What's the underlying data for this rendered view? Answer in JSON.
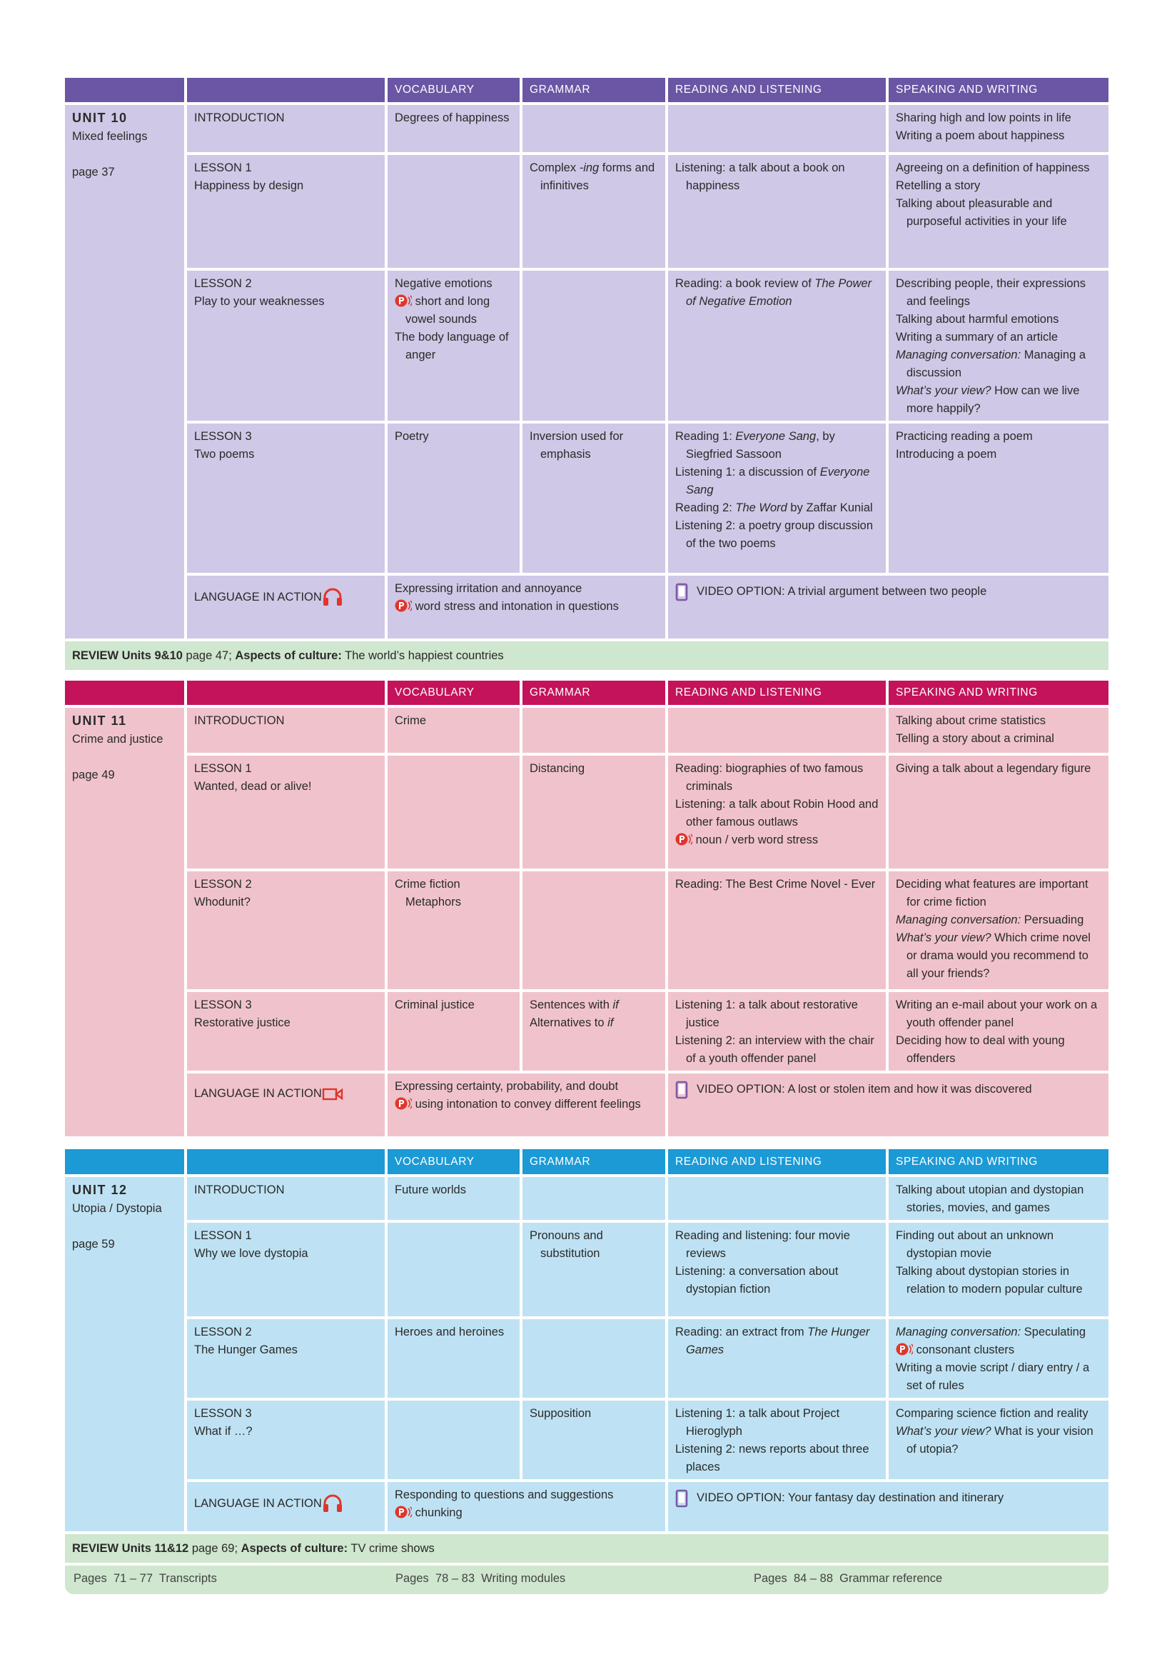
{
  "headers": [
    "VOCABULARY",
    "GRAMMAR",
    "READING AND LISTENING",
    "SPEAKING AND WRITING"
  ],
  "review_color": "#cfe6cf",
  "units": [
    {
      "unit": "UNIT 10",
      "title": "Mixed feelings",
      "page": "page 37",
      "header_color": "#6a56a4",
      "body_color": "#cfc8e6",
      "rows": [
        {
          "lesson": [
            "INTRODUCTION"
          ],
          "cells": [
            [
              "Degrees of happiness"
            ],
            [],
            [],
            [
              "Sharing high and low points in life",
              "Writing a poem about happiness"
            ]
          ]
        },
        {
          "lesson": [
            "LESSON 1",
            "Happiness by design"
          ],
          "cells": [
            [],
            [
              [
                "Complex ",
                {
                  "italic": "-ing"
                },
                " forms and infinitives"
              ]
            ],
            [
              "Listening: a talk about a book on happiness"
            ],
            [
              "Agreeing on a definition of happiness",
              "Retelling a story",
              "Talking about pleasurable and purposeful activities in your life"
            ]
          ]
        },
        {
          "lesson": [
            "LESSON 2",
            "Play to your weaknesses"
          ],
          "cells": [
            [
              "Negative emotions",
              [
                {
                  "icon": "pron"
                },
                "short and long vowel sounds"
              ],
              "The body language of anger"
            ],
            [],
            [
              [
                "Reading: a book review of ",
                {
                  "italic": "The Power of Negative Emotion"
                }
              ]
            ],
            [
              "Describing people, their expressions and feelings",
              "Talking about harmful emotions",
              "Writing a summary of an article",
              [
                {
                  "italic": "Managing conversation:"
                },
                " Managing a discussion"
              ],
              [
                {
                  "italic": "What’s your view?"
                },
                " How can we live more happily?"
              ]
            ]
          ]
        },
        {
          "lesson": [
            "LESSON 3",
            "Two poems"
          ],
          "cells": [
            [
              "Poetry"
            ],
            [
              "Inversion used for emphasis"
            ],
            [
              [
                "Reading 1: ",
                {
                  "italic": "Everyone Sang"
                },
                ", by Siegfried Sassoon"
              ],
              [
                "Listening 1: a discussion of ",
                {
                  "italic": "Everyone Sang"
                }
              ],
              [
                "Reading 2: ",
                {
                  "italic": "The Word"
                },
                " by Zaffar Kunial"
              ],
              "Listening 2: a poetry group discussion of the two poems"
            ],
            [
              "Practicing reading a poem",
              "Introducing a poem"
            ]
          ]
        }
      ],
      "language_in_action": {
        "label": "LANGUAGE IN ACTION",
        "icon": "headphones",
        "vocabulary": [
          "Expressing irritation and annoyance",
          [
            {
              "icon": "pron"
            },
            "word stress and intonation in questions"
          ]
        ],
        "video": "VIDEO OPTION: A trivial argument between two people"
      },
      "review": [
        {
          "bold": "REVIEW Units 9&10"
        },
        " page 47; ",
        {
          "bold": "Aspects of culture:"
        },
        " The world’s happiest countries"
      ]
    },
    {
      "unit": "UNIT 11",
      "title": "Crime and justice",
      "page": "page 49",
      "header_color": "#c4135a",
      "body_color": "#f0c3cc",
      "rows": [
        {
          "lesson": [
            "INTRODUCTION"
          ],
          "cells": [
            [
              "Crime"
            ],
            [],
            [],
            [
              "Talking about crime statistics",
              "Telling a story about a criminal"
            ]
          ]
        },
        {
          "lesson": [
            "LESSON 1",
            "Wanted, dead or alive!"
          ],
          "cells": [
            [],
            [
              "Distancing"
            ],
            [
              "Reading: biographies of two famous criminals",
              "Listening: a talk about Robin Hood and other famous outlaws",
              [
                {
                  "icon": "pron"
                },
                "noun / verb word stress"
              ]
            ],
            [
              "Giving a talk about a legendary figure"
            ]
          ]
        },
        {
          "lesson": [
            "LESSON 2",
            "Whodunit?"
          ],
          "cells": [
            [
              "Crime fiction Metaphors"
            ],
            [],
            [
              "Reading: The Best Crime Novel - Ever"
            ],
            [
              "Deciding what features are important for crime fiction",
              [
                {
                  "italic": "Managing conversation:"
                },
                " Persuading"
              ],
              [
                {
                  "italic": "What’s your view?"
                },
                " Which crime novel or drama would you recommend to all your friends?"
              ]
            ]
          ]
        },
        {
          "lesson": [
            "LESSON 3",
            "Restorative justice"
          ],
          "cells": [
            [
              "Criminal justice"
            ],
            [
              [
                "Sentences with ",
                {
                  "italic": "if"
                }
              ],
              [
                "Alternatives to ",
                {
                  "italic": "if"
                }
              ]
            ],
            [
              "Listening 1: a talk about restorative justice",
              "Listening 2: an interview with the chair of a youth offender panel"
            ],
            [
              "Writing an e-mail about your work on a youth offender panel",
              "Deciding how to deal with young offenders"
            ]
          ]
        }
      ],
      "language_in_action": {
        "label": "LANGUAGE IN ACTION",
        "icon": "camera",
        "vocabulary": [
          "Expressing certainty, probability, and doubt",
          [
            {
              "icon": "pron"
            },
            "using intonation to convey different feelings"
          ]
        ],
        "video": "VIDEO OPTION:  A lost or stolen item and how it was discovered"
      }
    },
    {
      "unit": "UNIT 12",
      "title": "Utopia / Dystopia",
      "page": "page 59",
      "header_color": "#1b9ad6",
      "body_color": "#bee2f3",
      "rows": [
        {
          "lesson": [
            "INTRODUCTION"
          ],
          "cells": [
            [
              "Future worlds"
            ],
            [],
            [],
            [
              "Talking about utopian and dystopian stories, movies, and games"
            ]
          ]
        },
        {
          "lesson": [
            "LESSON 1",
            "Why we love dystopia"
          ],
          "cells": [
            [],
            [
              "Pronouns and substitution"
            ],
            [
              "Reading and listening: four movie reviews",
              "Listening: a conversation about dystopian fiction"
            ],
            [
              "Finding out about an unknown dystopian movie",
              "Talking about dystopian stories in relation to modern popular culture"
            ]
          ]
        },
        {
          "lesson": [
            "LESSON 2",
            "The Hunger Games"
          ],
          "cells": [
            [
              "Heroes and heroines"
            ],
            [],
            [
              [
                "Reading: an extract from ",
                {
                  "italic": "The Hunger Games"
                }
              ]
            ],
            [
              [
                {
                  "italic": "Managing conversation:"
                },
                " Speculating"
              ],
              [
                {
                  "icon": "pron"
                },
                "consonant clusters"
              ],
              "Writing a movie script / diary entry / a set of rules"
            ]
          ]
        },
        {
          "lesson": [
            "LESSON 3",
            "What if …?"
          ],
          "cells": [
            [],
            [
              "Supposition"
            ],
            [
              "Listening 1: a talk about Project Hieroglyph",
              "Listening 2: news reports about three places"
            ],
            [
              "Comparing science fiction and reality",
              [
                {
                  "italic": "What’s your view?"
                },
                " What is your vision of utopia?"
              ]
            ]
          ]
        }
      ],
      "language_in_action": {
        "label": "LANGUAGE IN ACTION",
        "icon": "headphones",
        "vocabulary": [
          "Responding to questions and suggestions",
          [
            {
              "icon": "pron"
            },
            "chunking"
          ]
        ],
        "video": "VIDEO OPTION:  Your fantasy day destination and itinerary"
      },
      "review": [
        {
          "bold": "REVIEW Units 11&12"
        },
        " page 69; ",
        {
          "bold": "Aspects of culture:"
        },
        " TV crime shows"
      ]
    }
  ],
  "footer": [
    "Pages  71 – 77  Transcripts",
    "Pages  78 – 83  Writing modules",
    "Pages  84 – 88  Grammar reference"
  ]
}
